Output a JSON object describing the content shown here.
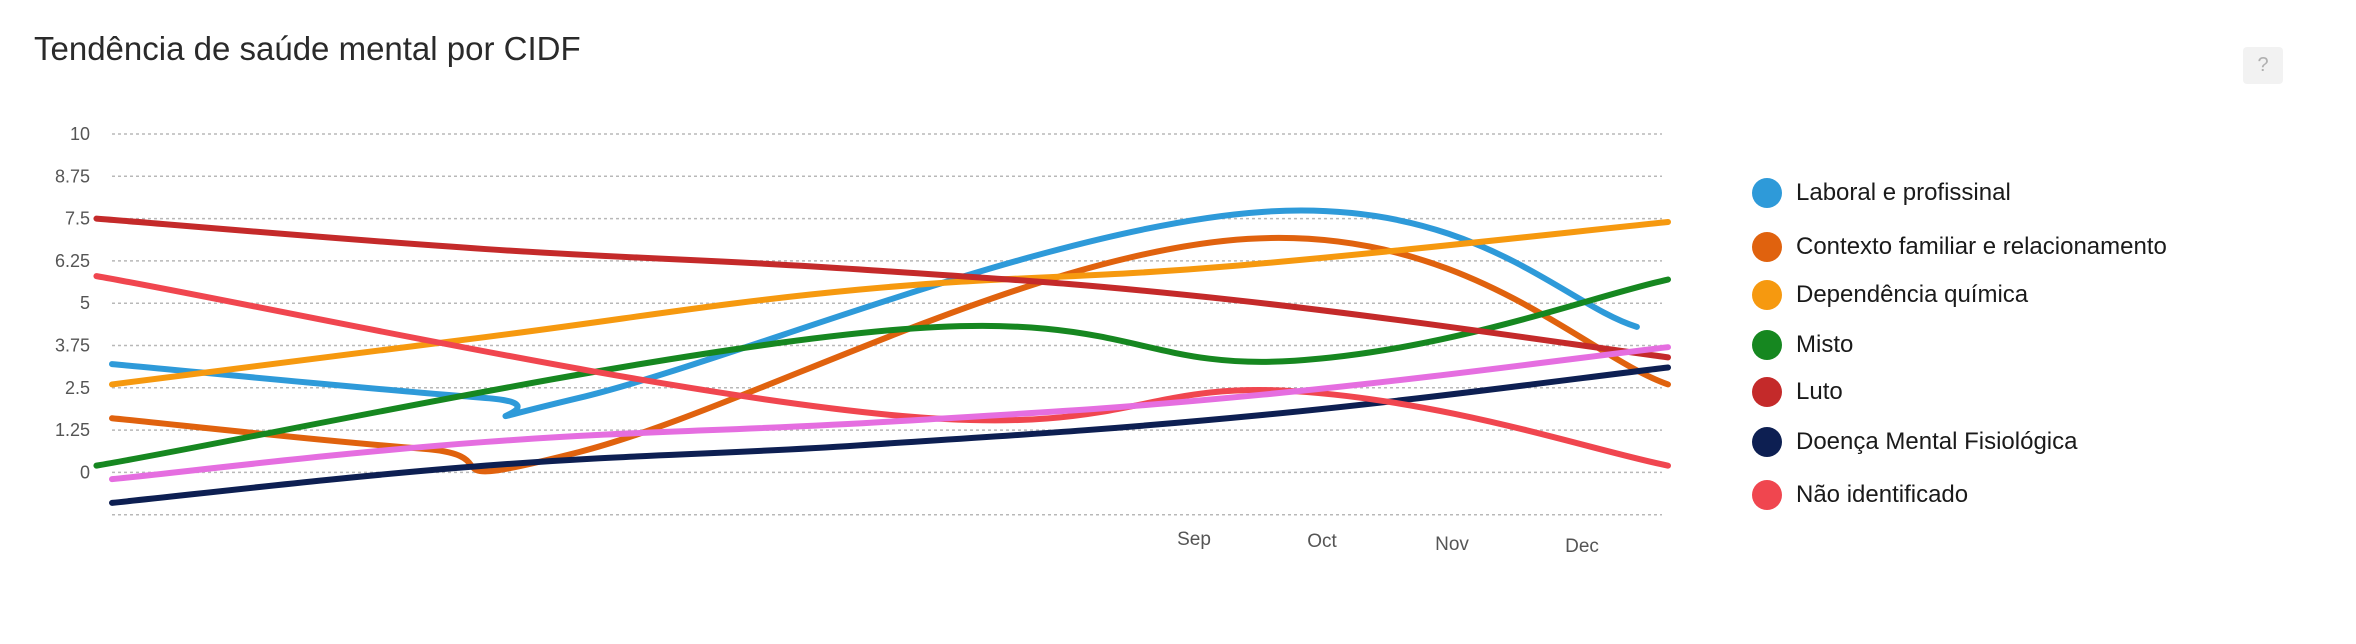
{
  "title": "Tendência de saúde mental por CIDF",
  "help": {
    "label": "?"
  },
  "chart_data": {
    "type": "line",
    "title": "Tendência de saúde mental por CIDF",
    "ylim": [
      -2,
      10
    ],
    "yticks": [
      "10",
      "8.75",
      "7.5",
      "6.25",
      "5",
      "3.75",
      "2.5",
      "1.25",
      "0"
    ],
    "xlabels": [
      "Sep",
      "Oct",
      "Nov",
      "Dec"
    ],
    "grid": true,
    "legend_position": "right",
    "series": [
      {
        "name": "Laboral e profissinal",
        "color": "#2e9ad9",
        "points": [
          [
            0,
            3.2
          ],
          [
            0.24,
            2.2
          ],
          [
            0.3,
            2.2
          ],
          [
            0.74,
            7.7
          ],
          [
            0.98,
            4.3
          ]
        ]
      },
      {
        "name": "Contexto familiar e relacionamento",
        "color": "#e0620e",
        "points": [
          [
            0,
            1.6
          ],
          [
            0.2,
            0.7
          ],
          [
            0.3,
            0.6
          ],
          [
            0.73,
            6.9
          ],
          [
            1.0,
            2.6
          ]
        ]
      },
      {
        "name": "Dependência química",
        "color": "#f6990f",
        "points": [
          [
            0,
            2.6
          ],
          [
            0.24,
            4.0
          ],
          [
            0.48,
            5.4
          ],
          [
            0.72,
            6.1
          ],
          [
            1.0,
            7.4
          ]
        ]
      },
      {
        "name": "Misto",
        "color": "#168720",
        "points": [
          [
            -0.01,
            0.2
          ],
          [
            0.5,
            4.2
          ],
          [
            0.76,
            3.3
          ],
          [
            1.0,
            5.7
          ]
        ]
      },
      {
        "name": "Luto",
        "color": "#c42a2a",
        "points": [
          [
            -0.01,
            7.5
          ],
          [
            0.24,
            6.6
          ],
          [
            0.48,
            6.0
          ],
          [
            0.72,
            5.1
          ],
          [
            1.0,
            3.4
          ]
        ]
      },
      {
        "name": "Doença Mental Fisiológica",
        "color": "#0d1f52",
        "points": [
          [
            0,
            -0.9
          ],
          [
            0.24,
            0.2
          ],
          [
            0.48,
            0.8
          ],
          [
            0.74,
            1.7
          ],
          [
            1.0,
            3.1
          ]
        ]
      },
      {
        "name": "Não identificado",
        "color": "#f0464f",
        "points": [
          [
            -0.01,
            5.8
          ],
          [
            0.5,
            1.7
          ],
          [
            0.76,
            2.4
          ],
          [
            1.0,
            0.2
          ]
        ]
      },
      {
        "name": "",
        "color": "#e56ee0",
        "points": [
          [
            0,
            -0.2
          ],
          [
            0.24,
            0.9
          ],
          [
            0.5,
            1.5
          ],
          [
            0.74,
            2.3
          ],
          [
            1.0,
            3.7
          ]
        ]
      }
    ]
  },
  "legend": [
    {
      "label": "Laboral e profissinal",
      "color": "#2e9ad9"
    },
    {
      "label": "Contexto familiar e relacionamento",
      "color": "#e0620e"
    },
    {
      "label": "Dependência química",
      "color": "#f6990f"
    },
    {
      "label": "Misto",
      "color": "#168720"
    },
    {
      "label": "Luto",
      "color": "#c42a2a"
    },
    {
      "label": "Doença Mental Fisiológica",
      "color": "#0d1f52"
    },
    {
      "label": "Não identificado",
      "color": "#f0464f"
    }
  ]
}
